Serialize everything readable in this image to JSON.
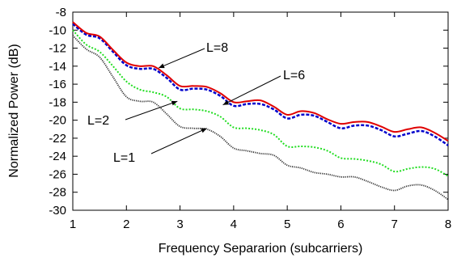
{
  "chart_data": {
    "type": "line",
    "title": "",
    "xlabel": "Frequency Separarion (subcarriers)",
    "ylabel": "Normalized Power (dB)",
    "xlim": [
      1,
      8
    ],
    "ylim": [
      -30,
      -8
    ],
    "xticks": [
      1,
      2,
      3,
      4,
      5,
      6,
      7,
      8
    ],
    "yticks": [
      -8,
      -10,
      -12,
      -14,
      -16,
      -18,
      -20,
      -22,
      -24,
      -26,
      -28,
      -30
    ],
    "grid": false,
    "legend": "none",
    "x": [
      1,
      1.25,
      1.5,
      1.75,
      2,
      2.25,
      2.5,
      2.75,
      3,
      3.25,
      3.5,
      3.75,
      4,
      4.25,
      4.5,
      4.75,
      5,
      5.25,
      5.5,
      5.75,
      6,
      6.25,
      6.5,
      6.75,
      7,
      7.25,
      7.5,
      7.75,
      8
    ],
    "series": [
      {
        "name": "L=8",
        "color": "#e00000",
        "dash": "solid",
        "values": [
          -9.1,
          -10.3,
          -10.7,
          -12.2,
          -13.6,
          -14.0,
          -14.0,
          -15.0,
          -16.2,
          -16.2,
          -16.3,
          -17.0,
          -18.0,
          -17.9,
          -17.8,
          -18.5,
          -19.4,
          -19.0,
          -19.2,
          -19.9,
          -20.4,
          -20.2,
          -20.2,
          -20.7,
          -21.3,
          -21.0,
          -20.8,
          -21.4,
          -22.3
        ]
      },
      {
        "name": "L=6",
        "color": "#0000cc",
        "dash": "dashed",
        "values": [
          -9.3,
          -10.5,
          -10.9,
          -12.4,
          -13.9,
          -14.3,
          -14.3,
          -15.3,
          -16.6,
          -16.5,
          -16.6,
          -17.3,
          -18.4,
          -18.2,
          -18.2,
          -18.8,
          -19.8,
          -19.4,
          -19.5,
          -20.2,
          -20.9,
          -20.6,
          -20.6,
          -21.1,
          -21.8,
          -21.5,
          -21.2,
          -21.8,
          -22.8
        ]
      },
      {
        "name": "L=2",
        "color": "#22dd22",
        "dash": "dotted",
        "values": [
          -10.0,
          -11.6,
          -12.4,
          -14.0,
          -15.7,
          -16.6,
          -16.9,
          -17.4,
          -18.7,
          -18.8,
          -19.0,
          -19.6,
          -20.8,
          -20.9,
          -21.1,
          -21.6,
          -22.9,
          -22.9,
          -23.0,
          -23.4,
          -24.2,
          -24.3,
          -24.5,
          -24.9,
          -25.7,
          -25.4,
          -25.2,
          -25.4,
          -26.2
        ]
      },
      {
        "name": "L=1",
        "color": "#333333",
        "dash": "fine-dotted",
        "values": [
          -10.6,
          -12.1,
          -13.0,
          -15.2,
          -17.4,
          -17.9,
          -18.0,
          -19.3,
          -20.7,
          -20.9,
          -21.0,
          -21.8,
          -23.1,
          -23.4,
          -23.7,
          -23.9,
          -25.0,
          -25.3,
          -25.8,
          -26.0,
          -26.3,
          -26.3,
          -26.8,
          -27.4,
          -27.8,
          -27.3,
          -27.2,
          -27.8,
          -28.8
        ]
      }
    ],
    "annotations": [
      {
        "text": "L=8",
        "target": [
          2.6,
          -14.2
        ]
      },
      {
        "text": "L=6",
        "target": [
          3.8,
          -18.3
        ]
      },
      {
        "text": "L=2",
        "target": [
          2.95,
          -17.9
        ]
      },
      {
        "text": "L=1",
        "target": [
          3.5,
          -20.9
        ]
      }
    ]
  }
}
